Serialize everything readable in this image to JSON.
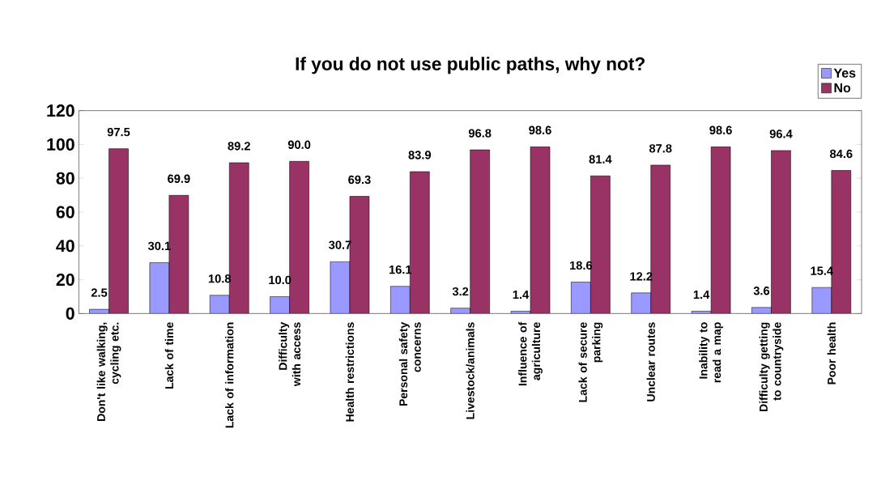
{
  "chart_data": {
    "type": "bar",
    "title": "If you do not use public paths, why not?",
    "categories": [
      "Don't like walking, cycling etc.",
      "Lack of time",
      "Lack of information",
      "Difficulty with access",
      "Health restrictions",
      "Personal safety concerns",
      "Livestock/animals",
      "Influence of agriculture",
      "Lack of secure parking",
      "Unclear routes",
      "Inability to read a map",
      "Difficulty getting to countryside",
      "Poor health"
    ],
    "series": [
      {
        "name": "Yes",
        "color": "#9999ff",
        "values": [
          2.5,
          30.1,
          10.8,
          10.0,
          30.7,
          16.1,
          3.2,
          1.4,
          18.6,
          12.2,
          1.4,
          3.6,
          15.4
        ],
        "value_labels": [
          "2.5",
          "30.1",
          "10.8",
          "10.0",
          "30.7",
          "16.1",
          "3.2",
          "1.4",
          "18.6",
          "12.2",
          "1.4",
          "3.6",
          "15.4"
        ]
      },
      {
        "name": "No",
        "color": "#993366",
        "values": [
          97.5,
          69.9,
          89.2,
          90.0,
          69.3,
          83.9,
          96.8,
          98.6,
          81.4,
          87.8,
          98.6,
          96.4,
          84.6
        ],
        "value_labels": [
          "97.5",
          "69.9",
          "89.2",
          "90.0",
          "69.3",
          "83.9",
          "96.8",
          "98.6",
          "81.4",
          "87.8",
          "98.6",
          "96.4",
          "84.6"
        ]
      }
    ],
    "ylim": [
      0,
      120
    ],
    "yticks": [
      0,
      20,
      40,
      60,
      80,
      100,
      120
    ],
    "grid": false,
    "legend": "top right"
  }
}
